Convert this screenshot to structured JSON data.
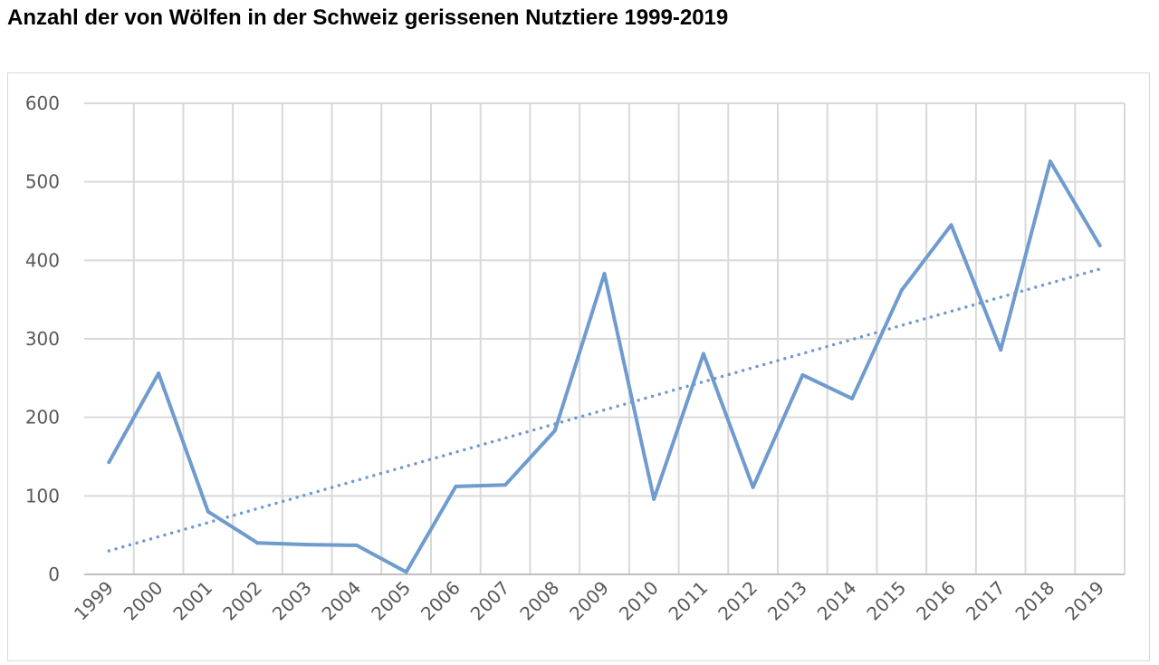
{
  "title": "Anzahl der von Wölfen in der Schweiz gerissenen Nutztiere 1999-2019",
  "chart_data": {
    "type": "line",
    "categories": [
      "1999",
      "2000",
      "2001",
      "2002",
      "2003",
      "2004",
      "2005",
      "2006",
      "2007",
      "2008",
      "2009",
      "2010",
      "2011",
      "2012",
      "2013",
      "2014",
      "2015",
      "2016",
      "2017",
      "2018",
      "2019"
    ],
    "series": [
      {
        "values": [
          143,
          256,
          80,
          40,
          38,
          37,
          3,
          112,
          114,
          183,
          383,
          96,
          281,
          111,
          254,
          224,
          362,
          445,
          286,
          526,
          419
        ],
        "color": "#6f9bcf",
        "style": "solid"
      }
    ],
    "trendline": {
      "type": "linear",
      "start_value": 30,
      "end_value": 389,
      "color": "#6f9bcf",
      "style": "dotted"
    },
    "ylim": [
      0,
      600
    ],
    "yticks": [
      0,
      100,
      200,
      300,
      400,
      500,
      600
    ],
    "grid": true,
    "legend": "none",
    "xlabel": "",
    "ylabel": ""
  }
}
